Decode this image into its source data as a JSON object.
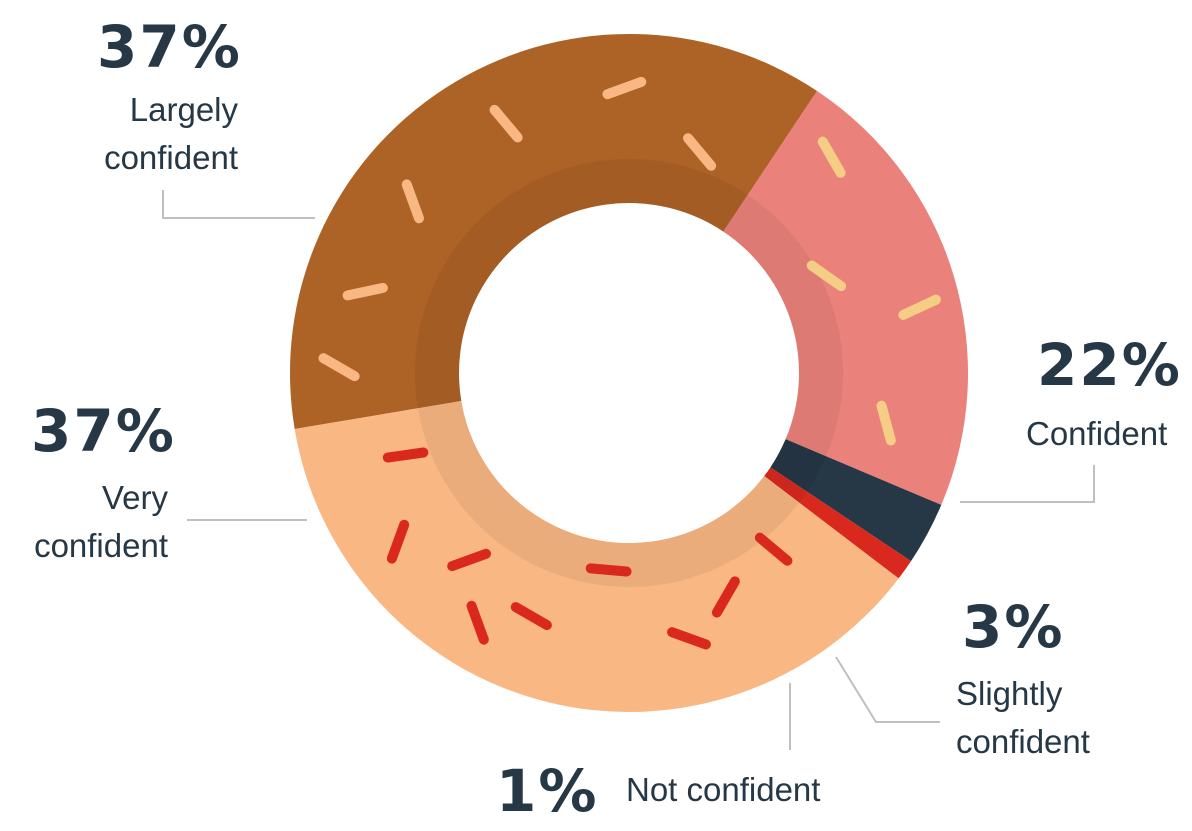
{
  "chart_data": {
    "type": "pie",
    "variant": "donut",
    "title": "",
    "slices": [
      {
        "label": "Largely confident",
        "value": 37,
        "value_label": "37%",
        "color": "#AD6226"
      },
      {
        "label": "Confident",
        "value": 22,
        "value_label": "22%",
        "color": "#EA827B"
      },
      {
        "label": "Slightly confident",
        "value": 3,
        "value_label": "3%",
        "color": "#263746"
      },
      {
        "label": "Not confident",
        "value": 1,
        "value_label": "1%",
        "color": "#D9291F"
      },
      {
        "label": "Very confident",
        "value": 37,
        "value_label": "37%",
        "color": "#F9B784"
      }
    ],
    "legend": "none"
  },
  "colors": {
    "text": "#263746",
    "leader_line": "#BFBFBF",
    "inner_shade": "#000000",
    "sprinkles_on_largely": "#F9B784",
    "sprinkles_on_confident": "#F6CD85",
    "sprinkles_on_very": "#D9291F"
  }
}
